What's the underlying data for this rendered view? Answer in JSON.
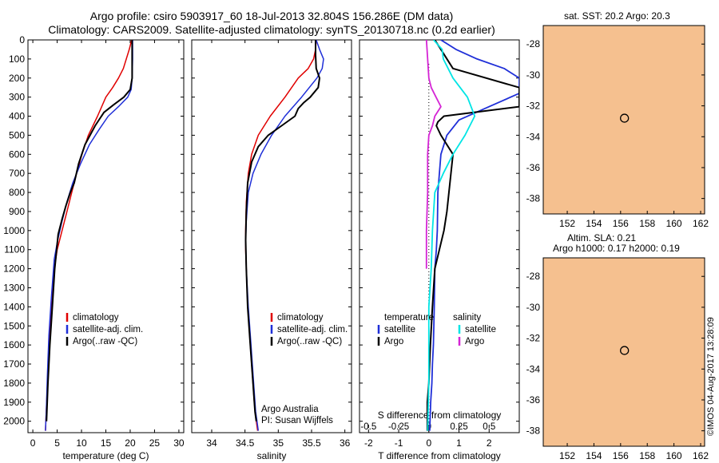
{
  "header": {
    "title_line1": "Argo profile: csiro 5903917_60 18-Jul-2013 32.804S 156.286E (DM data)",
    "title_line2": "Climatology: CARS2009. Satellite-adjusted climatology: synTS_20130718.nc (0.2d earlier)"
  },
  "credit": "©IMOS 04-Aug-2017 13:28:09",
  "colors": {
    "climatology": "#e00000",
    "satellite": "#1f2fd8",
    "argo": "#000000",
    "s_satellite": "#00e5e5",
    "s_argo": "#d524d5",
    "land": "#f5c08f"
  },
  "chart_data": [
    {
      "id": "temperature",
      "type": "line",
      "xlabel": "temperature (deg C)",
      "ylabel": "depth",
      "xlim": [
        -1,
        31
      ],
      "ylim": [
        0,
        2060
      ],
      "xticks": [
        0,
        5,
        10,
        15,
        20,
        25,
        30
      ],
      "yticks": [
        0,
        100,
        200,
        300,
        400,
        500,
        600,
        700,
        800,
        900,
        1000,
        1100,
        1200,
        1300,
        1400,
        1500,
        1600,
        1700,
        1800,
        1900,
        2000
      ],
      "legend": [
        "climatology",
        "satellite-adj. clim.",
        "Argo(..raw -QC)"
      ],
      "legend_placement": "lower-middle",
      "series": [
        {
          "name": "climatology",
          "color": "#e00000",
          "x": [
            20.3,
            19.8,
            18.6,
            17.6,
            16.4,
            15.0,
            13.3,
            11.4,
            10.1,
            9.0,
            8.0,
            7.0,
            6.0,
            5.0,
            4.4,
            3.8,
            3.3,
            3.0,
            2.75,
            2.6
          ],
          "y": [
            0,
            50,
            150,
            200,
            250,
            300,
            400,
            500,
            600,
            700,
            800,
            900,
            1000,
            1100,
            1200,
            1400,
            1600,
            1800,
            1950,
            2050
          ]
        },
        {
          "name": "satellite-adj. clim.",
          "color": "#1f2fd8",
          "x": [
            20.5,
            20.5,
            20.4,
            20.2,
            19.5,
            17.6,
            15.5,
            13.6,
            11.6,
            9.8,
            8.2,
            7.0,
            6.0,
            5.1,
            4.4,
            3.8,
            3.3,
            3.0,
            2.75,
            2.6
          ],
          "y": [
            0,
            100,
            200,
            260,
            300,
            350,
            400,
            470,
            550,
            650,
            750,
            850,
            950,
            1050,
            1150,
            1350,
            1550,
            1750,
            1950,
            2050
          ]
        },
        {
          "name": "Argo(..raw -QC)",
          "color": "#000000",
          "x": [
            20.4,
            20.4,
            20.4,
            20.0,
            18.7,
            16.6,
            14.6,
            12.8,
            10.7,
            9.4,
            8.5,
            7.7,
            6.8,
            6.0,
            5.2,
            4.5,
            4.0,
            3.5,
            3.1,
            2.8
          ],
          "y": [
            0,
            100,
            200,
            260,
            300,
            340,
            380,
            450,
            550,
            650,
            750,
            800,
            870,
            940,
            1020,
            1200,
            1400,
            1600,
            1800,
            2000
          ]
        }
      ]
    },
    {
      "id": "salinity",
      "type": "line",
      "xlabel": "salinity",
      "ylabel": "depth",
      "xlim": [
        33.7,
        36.1
      ],
      "ylim": [
        0,
        2060
      ],
      "xticks": [
        34,
        34.5,
        35,
        35.5,
        36
      ],
      "xtick_labels": [
        "34",
        "34.5",
        "35",
        "35.5",
        "36"
      ],
      "legend": [
        "climatology",
        "satellite-adj. clim.",
        "Argo(..raw -QC)"
      ],
      "legend_placement": "lower-middle",
      "annotation": [
        "Argo Australia",
        "PI: Susan Wijffels"
      ],
      "series": [
        {
          "name": "climatology",
          "color": "#e00000",
          "x": [
            35.57,
            35.56,
            35.53,
            35.45,
            35.3,
            35.1,
            34.88,
            34.7,
            34.6,
            34.55,
            34.52,
            34.51,
            34.51,
            34.53,
            34.56,
            34.6,
            34.64,
            34.67,
            34.69
          ],
          "y": [
            0,
            50,
            100,
            150,
            200,
            300,
            400,
            500,
            600,
            700,
            850,
            1000,
            1100,
            1300,
            1500,
            1700,
            1900,
            2000,
            2050
          ]
        },
        {
          "name": "satellite-adj. clim.",
          "color": "#1f2fd8",
          "x": [
            35.57,
            35.62,
            35.68,
            35.66,
            35.58,
            35.35,
            35.1,
            34.9,
            34.74,
            34.62,
            34.55,
            34.52,
            34.51,
            34.52,
            34.55,
            34.59,
            34.63,
            34.66,
            34.68,
            34.7
          ],
          "y": [
            0,
            50,
            100,
            150,
            200,
            300,
            400,
            500,
            600,
            700,
            800,
            950,
            1050,
            1200,
            1400,
            1600,
            1800,
            1950,
            2000,
            2050
          ]
        },
        {
          "name": "Argo(..raw -QC)",
          "color": "#000000",
          "x": [
            35.56,
            35.56,
            35.57,
            35.62,
            35.6,
            35.48,
            35.38,
            35.3,
            35.25,
            35.05,
            34.85,
            34.7,
            34.6,
            34.54,
            34.52,
            34.51,
            34.52,
            34.54,
            34.58,
            34.62,
            34.65,
            34.67
          ],
          "y": [
            0,
            80,
            150,
            200,
            250,
            300,
            330,
            360,
            400,
            450,
            500,
            560,
            640,
            750,
            900,
            1050,
            1200,
            1400,
            1600,
            1800,
            1950,
            2000
          ]
        }
      ]
    },
    {
      "id": "difference",
      "type": "line",
      "xlabel": "T difference from climatology",
      "x2label": "S difference from climatology",
      "ylim": [
        0,
        2060
      ],
      "xlim": [
        -2.3,
        3.0
      ],
      "xticks": [
        -2,
        -1,
        0,
        1,
        2
      ],
      "xticks_top": [
        -0.5,
        -0.25,
        0,
        0.25,
        0.5
      ],
      "xticks_top_labels": [
        "-0.5",
        "-0.25",
        "0",
        "0.25",
        "0.5"
      ],
      "legend_temperature": {
        "title": "temperature",
        "items": [
          "satellite",
          "Argo"
        ]
      },
      "legend_salinity": {
        "title": "salinity",
        "items": [
          "satellite",
          "Argo"
        ]
      },
      "series": [
        {
          "name": "temperature satellite",
          "color": "#1f2fd8",
          "x": [
            0.4,
            0.9,
            1.6,
            2.5,
            3.0,
            3.0,
            2.0,
            1.0,
            0.6,
            0.4,
            0.3,
            0.28,
            0.25,
            0.2,
            0.18,
            0.15,
            0.12,
            0.1,
            0.06,
            0.03
          ],
          "y": [
            0,
            50,
            100,
            150,
            200,
            280,
            350,
            420,
            500,
            600,
            800,
            1000,
            1100,
            1200,
            1400,
            1600,
            1700,
            1800,
            1900,
            2050
          ]
        },
        {
          "name": "temperature Argo",
          "color": "#000000",
          "x": [
            0.2,
            0.4,
            0.8,
            3.0,
            3.0,
            1.5,
            0.5,
            0.3,
            0.25,
            0.4,
            0.8,
            0.7,
            0.6,
            0.5,
            0.35,
            0.2,
            0.12,
            0.05,
            0.0,
            -0.05,
            -0.05
          ],
          "y": [
            0,
            50,
            150,
            250,
            350,
            380,
            400,
            430,
            450,
            500,
            600,
            750,
            900,
            1000,
            1100,
            1200,
            1400,
            1600,
            1800,
            1900,
            2050
          ]
        },
        {
          "name": "salinity satellite",
          "color": "#00e5e5",
          "x": [
            0.04,
            0.11,
            0.12,
            0.2,
            0.32,
            0.38,
            0.3,
            0.2,
            0.12,
            0.05,
            0.03,
            0.02,
            0.0,
            0.0,
            0.0,
            -0.01
          ],
          "y": [
            0,
            50,
            100,
            200,
            300,
            400,
            500,
            600,
            700,
            800,
            1000,
            1200,
            1400,
            1600,
            1800,
            2050
          ]
        },
        {
          "name": "salinity Argo",
          "color": "#d524d5",
          "x": [
            -0.02,
            -0.01,
            0.0,
            0.02,
            0.06,
            0.1,
            0.05,
            0.03,
            0.0,
            -0.01,
            -0.01,
            -0.02,
            -0.02,
            -0.02
          ],
          "y": [
            0,
            100,
            200,
            250,
            300,
            350,
            400,
            450,
            500,
            600,
            800,
            1000,
            1100,
            1200
          ]
        }
      ]
    },
    {
      "id": "sst_map",
      "type": "heatmap",
      "title": "sat. SST: 20.2 Argo: 20.3",
      "xlim": [
        150.2,
        162.3
      ],
      "ylim": [
        -39.0,
        -26.8
      ],
      "xticks": [
        152,
        154,
        156,
        158,
        160,
        162
      ],
      "yticks": [
        -28,
        -30,
        -32,
        -34,
        -36,
        -38
      ],
      "marker": {
        "lon": 156.29,
        "lat": -32.8
      },
      "colormap": "jet"
    },
    {
      "id": "sla_map",
      "type": "heatmap",
      "title_lines": [
        "Altim. SLA: 0.21",
        "Argo h1000: 0.17 h2000: 0.19"
      ],
      "xlim": [
        150.2,
        162.3
      ],
      "ylim": [
        -39.0,
        -26.8
      ],
      "xticks": [
        152,
        154,
        156,
        158,
        160,
        162
      ],
      "yticks": [
        -28,
        -30,
        -32,
        -34,
        -36,
        -38
      ],
      "marker": {
        "lon": 156.29,
        "lat": -32.8
      },
      "colormap": "jet"
    }
  ]
}
